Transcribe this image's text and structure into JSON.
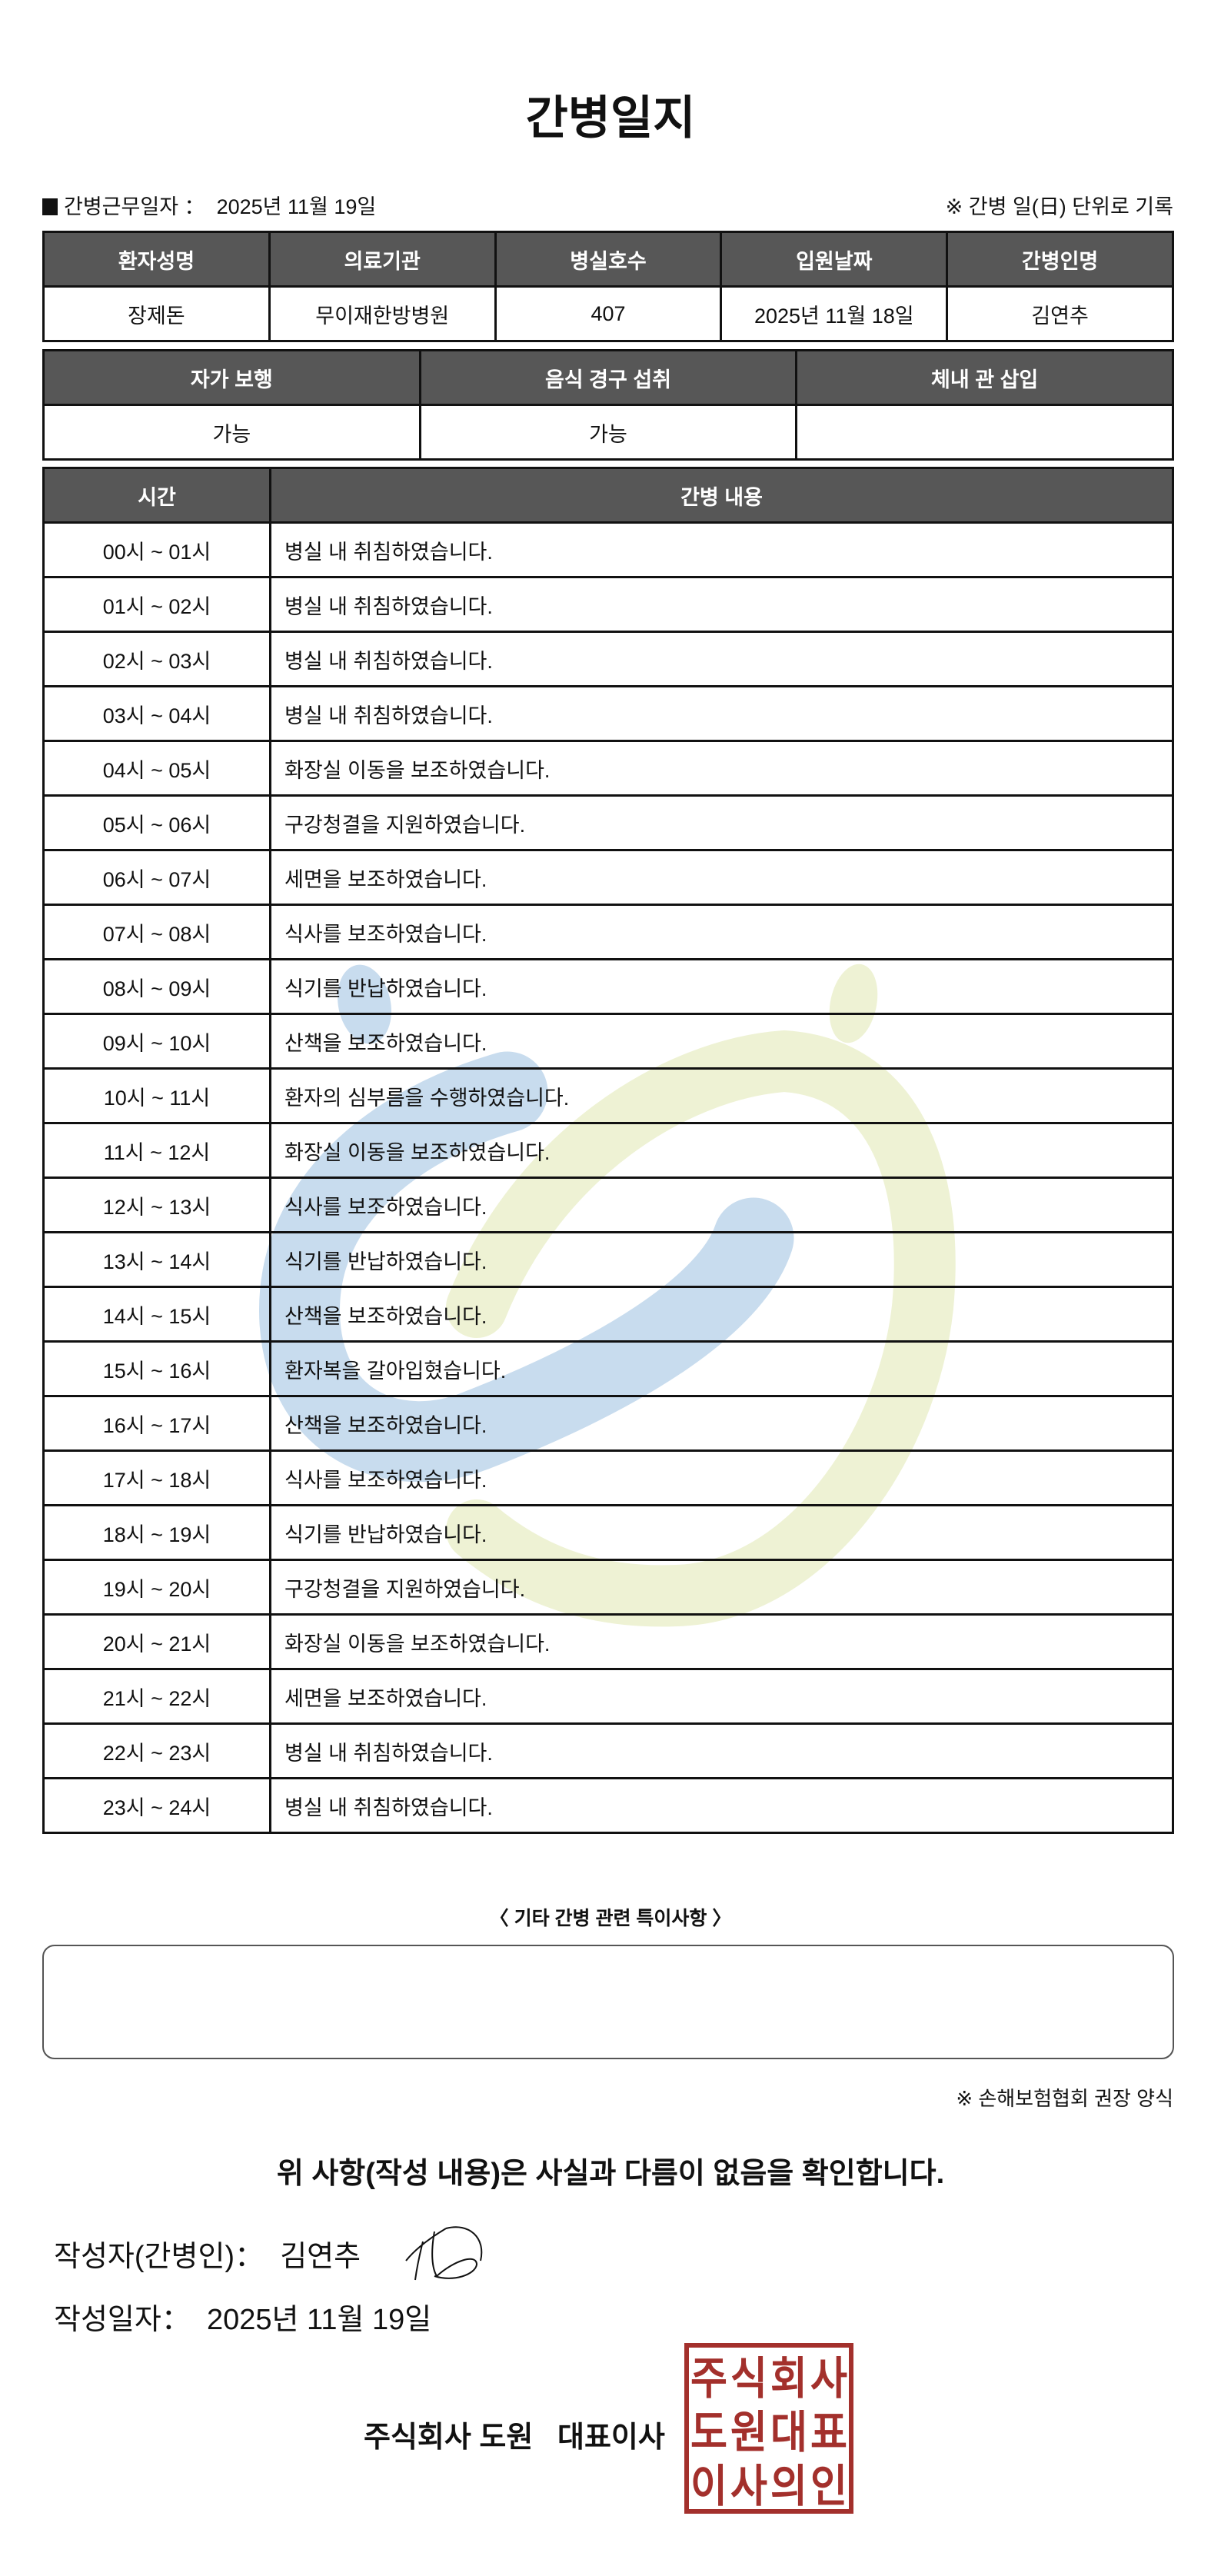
{
  "title": "간병일지",
  "work_date_label": "간병근무일자 ：",
  "work_date": "2025년 11월 19일",
  "record_note": "※ 간병 일(日) 단위로 기록",
  "patient_table": {
    "headers": [
      "환자성명",
      "의료기관",
      "병실호수",
      "입원날짜",
      "간병인명"
    ],
    "values": [
      "장제돈",
      "무이재한방병원",
      "407",
      "2025년 11월 18일",
      "김연추"
    ]
  },
  "status_table": {
    "headers": [
      "자가 보행",
      "음식 경구 섭취",
      "체내 관 삽입"
    ],
    "values": [
      "가능",
      "가능",
      ""
    ]
  },
  "log_table": {
    "headers": [
      "시간",
      "간병 내용"
    ],
    "rows": [
      {
        "time": "00시 ~ 01시",
        "content": "병실 내 취침하였습니다."
      },
      {
        "time": "01시 ~ 02시",
        "content": "병실 내 취침하였습니다."
      },
      {
        "time": "02시 ~ 03시",
        "content": "병실 내 취침하였습니다."
      },
      {
        "time": "03시 ~ 04시",
        "content": "병실 내 취침하였습니다."
      },
      {
        "time": "04시 ~ 05시",
        "content": "화장실 이동을 보조하였습니다."
      },
      {
        "time": "05시 ~ 06시",
        "content": "구강청결을 지원하였습니다."
      },
      {
        "time": "06시 ~ 07시",
        "content": "세면을 보조하였습니다."
      },
      {
        "time": "07시 ~ 08시",
        "content": "식사를 보조하였습니다."
      },
      {
        "time": "08시 ~ 09시",
        "content": "식기를 반납하였습니다."
      },
      {
        "time": "09시 ~ 10시",
        "content": "산책을 보조하였습니다."
      },
      {
        "time": "10시 ~ 11시",
        "content": "환자의 심부름을 수행하였습니다."
      },
      {
        "time": "11시 ~ 12시",
        "content": "화장실 이동을 보조하였습니다."
      },
      {
        "time": "12시 ~ 13시",
        "content": "식사를 보조하였습니다."
      },
      {
        "time": "13시 ~ 14시",
        "content": "식기를 반납하였습니다."
      },
      {
        "time": "14시 ~ 15시",
        "content": "산책을 보조하였습니다."
      },
      {
        "time": "15시 ~ 16시",
        "content": "환자복을 갈아입혔습니다."
      },
      {
        "time": "16시 ~ 17시",
        "content": "산책을 보조하였습니다."
      },
      {
        "time": "17시 ~ 18시",
        "content": "식사를 보조하였습니다."
      },
      {
        "time": "18시 ~ 19시",
        "content": "식기를 반납하였습니다."
      },
      {
        "time": "19시 ~ 20시",
        "content": "구강청결을 지원하였습니다."
      },
      {
        "time": "20시 ~ 21시",
        "content": "화장실 이동을 보조하였습니다."
      },
      {
        "time": "21시 ~ 22시",
        "content": "세면을 보조하였습니다."
      },
      {
        "time": "22시 ~ 23시",
        "content": "병실 내 취침하였습니다."
      },
      {
        "time": "23시 ~ 24시",
        "content": "병실 내 취침하였습니다."
      }
    ]
  },
  "notes_label": "〈 기타 간병 관련 특이사항 〉",
  "notes_value": "",
  "association_note": "※ 손해보험협회 권장 양식",
  "confirmation": "위 사항(작성 내용)은 사실과 다름이 없음을 확인합니다.",
  "writer_label": "작성자(간병인)：",
  "writer_name": "김연추",
  "written_date_label": "작성일자：",
  "written_date": "2025년 11월 19일",
  "company": "주식회사 도원   대표이사",
  "stamp_text": "주식회사도원대표이사의인",
  "colors": {
    "header_bg": "#575757",
    "stamp": "#a3302c",
    "watermark_blue": "#c8dcee",
    "watermark_green": "#eef2d4"
  }
}
